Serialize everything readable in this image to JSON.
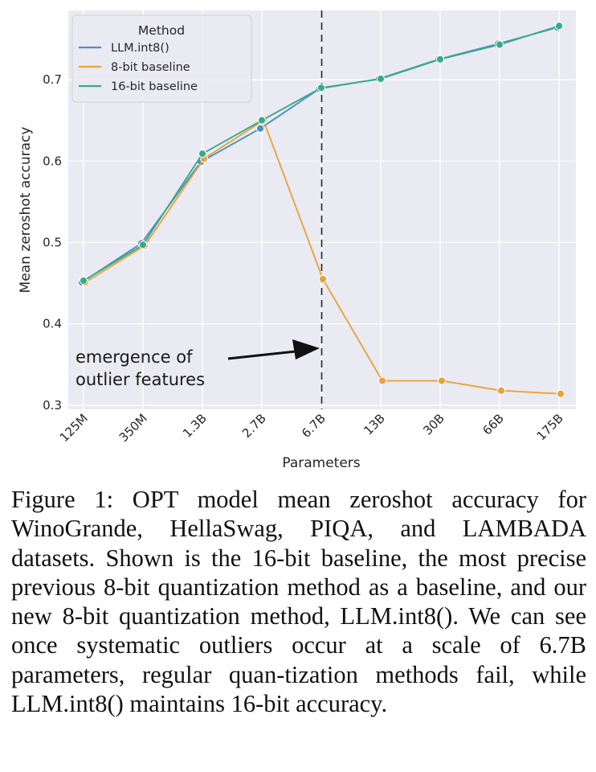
{
  "chart_data": {
    "type": "line",
    "categories": [
      "125M",
      "350M",
      "1.3B",
      "2.7B",
      "6.7B",
      "13B",
      "30B",
      "66B",
      "175B"
    ],
    "series": [
      {
        "name": "LLM.int8()",
        "color": "#4c8fc4",
        "values": [
          0.451,
          0.499,
          0.599,
          0.64,
          0.689,
          0.701,
          0.725,
          0.744,
          0.764
        ]
      },
      {
        "name": "8-bit baseline",
        "color": "#e8a33c",
        "values": [
          0.451,
          0.496,
          0.603,
          0.65,
          0.455,
          0.33,
          0.33,
          0.318,
          0.314
        ]
      },
      {
        "name": "16-bit baseline",
        "color": "#36ab8a",
        "values": [
          0.453,
          0.497,
          0.609,
          0.65,
          0.69,
          0.701,
          0.725,
          0.743,
          0.766
        ]
      }
    ],
    "xlabel": "Parameters",
    "ylabel": "Mean zeroshot accuracy",
    "ylim": [
      0.295,
      0.785
    ],
    "yticks": [
      "0.3",
      "0.4",
      "0.5",
      "0.6",
      "0.7"
    ],
    "grid": true,
    "legend": {
      "title": "Method",
      "location": "top-left"
    },
    "marker_line": {
      "at_category": "6.7B",
      "style": "dashed"
    },
    "annotation": {
      "lines": [
        "emergence of",
        "outlier features"
      ],
      "points_to_category": "6.7B"
    }
  },
  "caption": "Figure 1: OPT model mean zeroshot accuracy for WinoGrande, HellaSwag, PIQA, and LAMBADA datasets.  Shown is the 16-bit baseline, the most precise previous 8-bit quantization method as a baseline, and our new 8-bit quantization method, LLM.int8(). We can see once systematic outliers occur at a scale of 6.7B parameters, regular quan-tization methods fail, while LLM.int8() maintains 16-bit accuracy."
}
